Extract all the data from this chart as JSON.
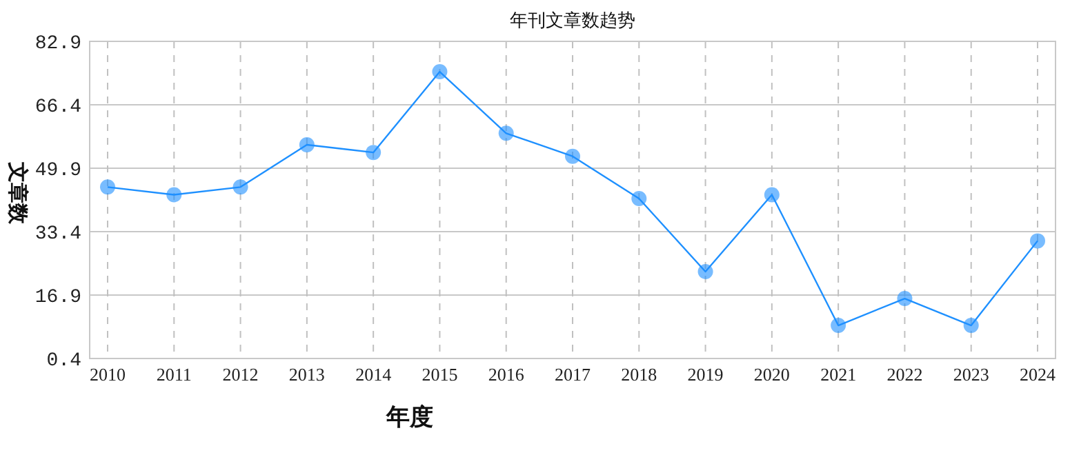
{
  "chart_data": {
    "type": "line",
    "title": "年刊文章数趋势",
    "xlabel": "年度",
    "ylabel": "文章数",
    "categories": [
      "2010",
      "2011",
      "2012",
      "2013",
      "2014",
      "2015",
      "2016",
      "2017",
      "2018",
      "2019",
      "2020",
      "2021",
      "2022",
      "2023",
      "2024"
    ],
    "series": [
      {
        "color": "#1e90ff",
        "values": [
          45,
          43,
          45,
          56,
          54,
          75,
          59,
          53,
          42,
          23,
          43,
          9,
          16,
          9,
          31
        ]
      }
    ],
    "ylim": [
      0.4,
      82.9
    ],
    "yticks": [
      0.4,
      16.9,
      33.4,
      49.9,
      66.4,
      82.9
    ],
    "grid": true,
    "marker": "circle",
    "line_style": "solid"
  }
}
